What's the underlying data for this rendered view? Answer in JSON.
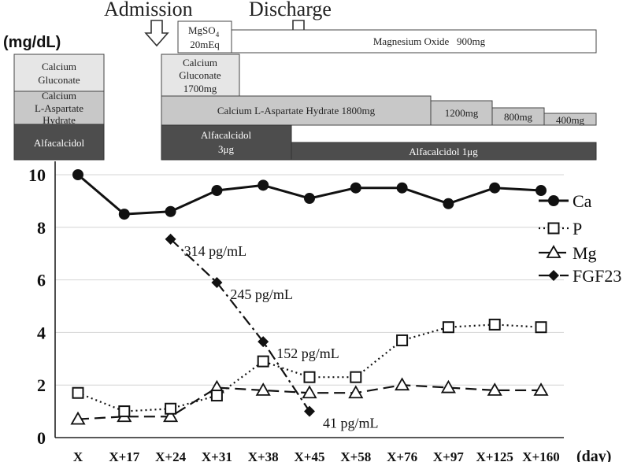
{
  "events": [
    {
      "id": "admission",
      "label": "Admission"
    },
    {
      "id": "discharge",
      "label": "Discharge"
    }
  ],
  "treatment_bars": {
    "pre": [
      {
        "id": "pre-cag",
        "lines": [
          "Calcium",
          "Gluconate"
        ],
        "color": "#e6e6e6"
      },
      {
        "id": "pre-cla",
        "lines": [
          "Calcium",
          "L-Aspartate",
          "Hydrate"
        ],
        "color": "#c8c8c8"
      },
      {
        "id": "pre-alf",
        "lines": [
          "Alfacalcidol"
        ],
        "color": "#4d4d4d"
      }
    ],
    "post": [
      {
        "id": "mgso4",
        "lines": [
          "MgSO",
          "4",
          "20mEq"
        ],
        "color": "#ffffff"
      },
      {
        "id": "mgoxide",
        "lines": [
          "Magnesium Oxide   900mg"
        ],
        "color": "#ffffff"
      },
      {
        "id": "cag",
        "lines": [
          "Calcium",
          "Gluconate",
          "1700mg"
        ],
        "color": "#e6e6e6"
      },
      {
        "id": "cla1800",
        "lines": [
          "Calcium L-Aspartate Hydrate 1800mg"
        ],
        "color": "#c8c8c8"
      },
      {
        "id": "cla1200",
        "lines": [
          "1200mg"
        ],
        "color": "#c8c8c8"
      },
      {
        "id": "cla800",
        "lines": [
          "800mg"
        ],
        "color": "#c8c8c8"
      },
      {
        "id": "cla400",
        "lines": [
          "400mg"
        ],
        "color": "#c8c8c8"
      },
      {
        "id": "alf3",
        "lines": [
          "Alfacalcidol",
          "3μg"
        ],
        "color": "#4d4d4d"
      },
      {
        "id": "alf1",
        "lines": [
          "Alfacalcidol 1μg"
        ],
        "color": "#4d4d4d"
      }
    ]
  },
  "chart_data": {
    "type": "line",
    "ylabel": "(mg/dL)",
    "xlabel": "(day)",
    "ylim": [
      0,
      10
    ],
    "yticks": [
      0,
      2,
      4,
      6,
      8,
      10
    ],
    "categories": [
      "X",
      "X+17",
      "X+24",
      "X+31",
      "X+38",
      "X+45",
      "X+58",
      "X+76",
      "X+97",
      "X+125",
      "X+160"
    ],
    "series": [
      {
        "name": "Ca",
        "marker": "filled-circle",
        "line": "solid",
        "values": [
          10.0,
          8.5,
          8.6,
          9.4,
          9.6,
          9.1,
          9.5,
          9.5,
          8.9,
          9.5,
          9.4
        ]
      },
      {
        "name": "P",
        "marker": "open-square",
        "line": "dotted",
        "values": [
          1.7,
          1.0,
          1.1,
          1.6,
          2.9,
          2.3,
          2.3,
          3.7,
          4.2,
          4.3,
          4.2
        ]
      },
      {
        "name": "Mg",
        "marker": "open-triangle",
        "line": "dashed",
        "values": [
          0.7,
          0.8,
          0.8,
          1.9,
          1.8,
          1.7,
          1.7,
          2.0,
          1.9,
          1.8,
          1.8
        ]
      },
      {
        "name": "FGF23",
        "marker": "filled-diamond",
        "line": "dash-dot",
        "values": [
          null,
          null,
          7.55,
          5.9,
          3.65,
          1.0,
          null,
          null,
          null,
          null,
          null
        ]
      }
    ],
    "annotations": [
      {
        "series": "FGF23",
        "index": 2,
        "text": "314 pg/mL"
      },
      {
        "series": "FGF23",
        "index": 3,
        "text": "245 pg/mL"
      },
      {
        "series": "FGF23",
        "index": 4,
        "text": "152 pg/mL"
      },
      {
        "series": "FGF23",
        "index": 5,
        "text": "41 pg/mL"
      }
    ],
    "legend": "right"
  }
}
